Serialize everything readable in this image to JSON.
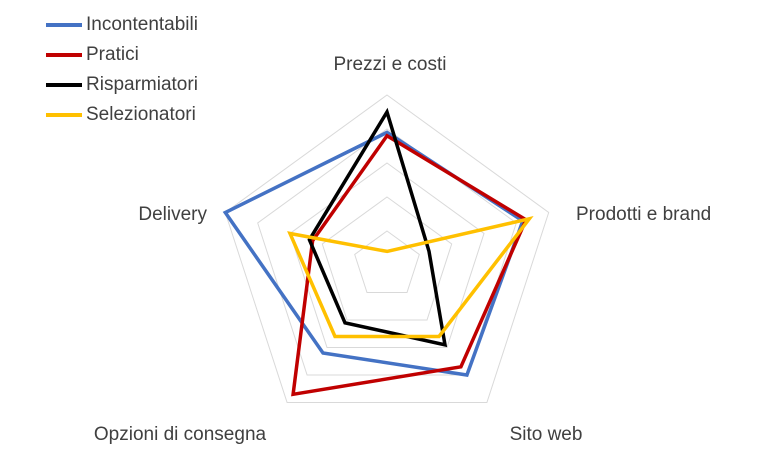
{
  "chart_data": {
    "type": "radar",
    "axes": [
      "Prezzi e costi",
      "Prodotti e brand",
      "Sito web",
      "Opzioni di consegna",
      "Delivery"
    ],
    "rmax": 5,
    "grid_levels": 5,
    "grid": true,
    "legend_position": "top-left",
    "series": [
      {
        "name": "Incontentabili",
        "color": "#4472C4",
        "values": [
          3.9,
          4.2,
          4.0,
          3.2,
          5.0
        ]
      },
      {
        "name": "Pratici",
        "color": "#C00000",
        "values": [
          3.8,
          4.3,
          3.7,
          4.7,
          2.3
        ]
      },
      {
        "name": "Risparmiatori",
        "color": "#000000",
        "values": [
          4.5,
          1.3,
          2.9,
          2.1,
          2.4
        ]
      },
      {
        "name": "Selezionatori",
        "color": "#FFC000",
        "values": [
          0.4,
          4.4,
          2.6,
          2.6,
          3.0
        ]
      }
    ]
  }
}
